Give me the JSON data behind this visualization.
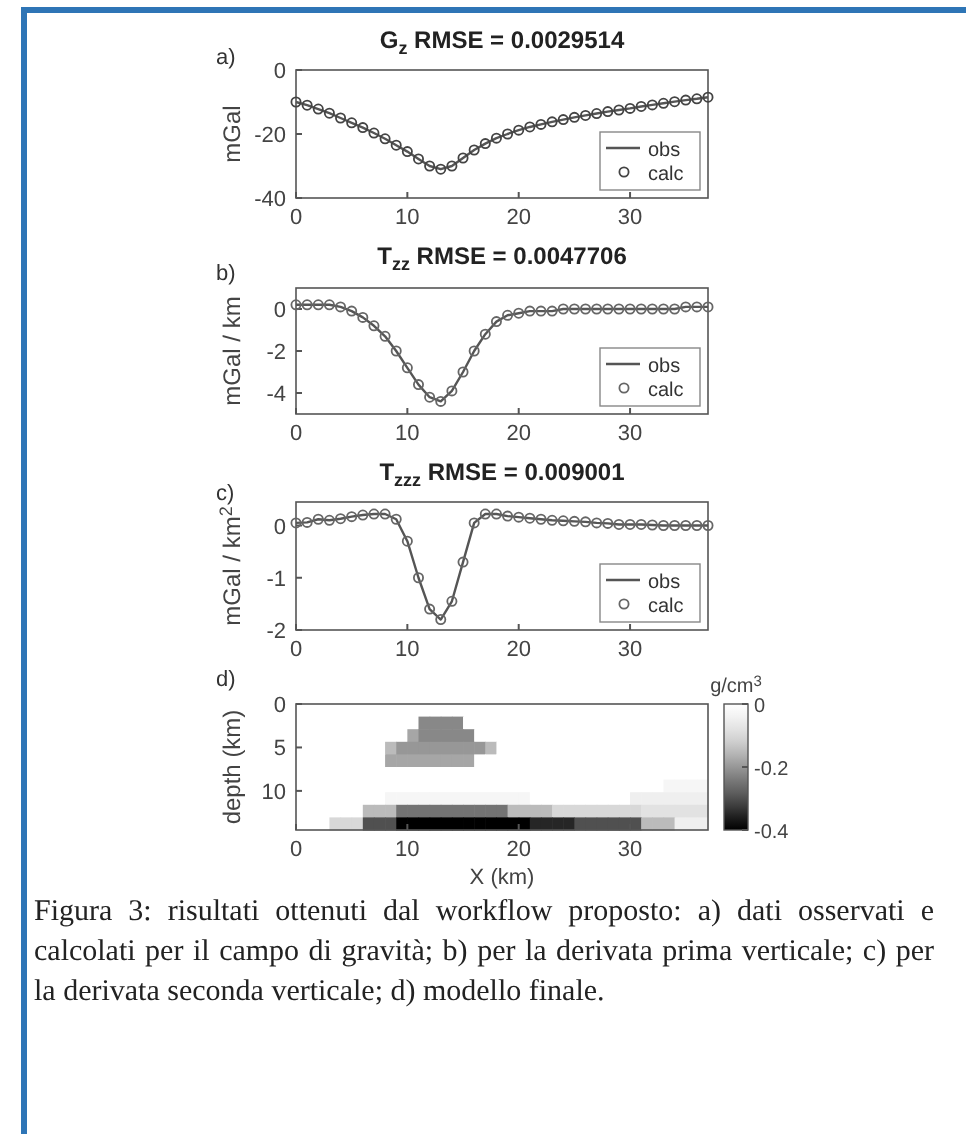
{
  "chart_data": [
    {
      "type": "line",
      "title": "G$_{z}$ RMSE = 0.0029514",
      "ylabel": "mGal",
      "annotations": [
        "a)"
      ],
      "x": [
        0,
        1,
        2,
        3,
        4,
        5,
        6,
        7,
        8,
        9,
        10,
        11,
        12,
        13,
        14,
        15,
        16,
        17,
        18,
        19,
        20,
        21,
        22,
        23,
        24,
        25,
        26,
        27,
        28,
        29,
        30,
        31,
        32,
        33,
        34,
        35,
        36,
        37
      ],
      "xlim": [
        0,
        37
      ],
      "xticks": [
        0,
        10,
        20,
        30
      ],
      "ylim": [
        -40,
        0
      ],
      "yticks": [
        -40,
        -20,
        0
      ],
      "grid": false,
      "legend": "bottom right",
      "series": [
        {
          "name": "obs",
          "type": "line",
          "color": "#555555",
          "line_style": "solid",
          "values": [
            -10,
            -11,
            -12.2,
            -13.5,
            -15,
            -16.5,
            -18,
            -19.7,
            -21.5,
            -23.5,
            -25.5,
            -27.8,
            -30,
            -31,
            -30,
            -27.5,
            -25,
            -23,
            -21.3,
            -20,
            -18.8,
            -17.8,
            -17,
            -16.2,
            -15.5,
            -14.8,
            -14.2,
            -13.6,
            -13,
            -12.5,
            -12,
            -11.4,
            -10.9,
            -10.4,
            -9.9,
            -9.4,
            -9,
            -8.5
          ]
        },
        {
          "name": "calc",
          "type": "scatter",
          "color": "#444444",
          "marker": "circle",
          "values": [
            -10,
            -11,
            -12.2,
            -13.5,
            -15,
            -16.5,
            -18,
            -19.7,
            -21.5,
            -23.5,
            -25.5,
            -27.8,
            -30,
            -31,
            -30,
            -27.5,
            -25,
            -23,
            -21.3,
            -20,
            -18.8,
            -17.8,
            -17,
            -16.2,
            -15.5,
            -14.8,
            -14.2,
            -13.6,
            -13,
            -12.5,
            -12,
            -11.4,
            -10.9,
            -10.4,
            -9.9,
            -9.4,
            -9,
            -8.5
          ]
        }
      ]
    },
    {
      "type": "line",
      "title": "T$_{zz}$ RMSE = 0.0047706",
      "ylabel": "mGal / km",
      "annotations": [
        "b)"
      ],
      "x": [
        0,
        1,
        2,
        3,
        4,
        5,
        6,
        7,
        8,
        9,
        10,
        11,
        12,
        13,
        14,
        15,
        16,
        17,
        18,
        19,
        20,
        21,
        22,
        23,
        24,
        25,
        26,
        27,
        28,
        29,
        30,
        31,
        32,
        33,
        34,
        35,
        36,
        37
      ],
      "xlim": [
        0,
        37
      ],
      "xticks": [
        0,
        10,
        20,
        30
      ],
      "ylim": [
        -5,
        1
      ],
      "yticks": [
        -4,
        -2,
        0
      ],
      "grid": false,
      "legend": "bottom right",
      "series": [
        {
          "name": "obs",
          "type": "line",
          "color": "#555555",
          "line_style": "solid",
          "values": [
            0.2,
            0.2,
            0.2,
            0.2,
            0.1,
            -0.1,
            -0.4,
            -0.8,
            -1.3,
            -2,
            -2.8,
            -3.6,
            -4.2,
            -4.4,
            -3.9,
            -3,
            -2,
            -1.2,
            -0.6,
            -0.3,
            -0.2,
            -0.1,
            -0.1,
            -0.1,
            0,
            0,
            0,
            0,
            0,
            0,
            0,
            0,
            0,
            0,
            0,
            0.1,
            0.1,
            0.1
          ]
        },
        {
          "name": "calc",
          "type": "scatter",
          "color": "#666666",
          "marker": "circle",
          "values": [
            0.2,
            0.2,
            0.2,
            0.2,
            0.1,
            -0.1,
            -0.4,
            -0.8,
            -1.3,
            -2,
            -2.8,
            -3.6,
            -4.2,
            -4.4,
            -3.9,
            -3,
            -2,
            -1.2,
            -0.6,
            -0.3,
            -0.2,
            -0.1,
            -0.1,
            -0.1,
            0,
            0,
            0,
            0,
            0,
            0,
            0,
            0,
            0,
            0,
            0,
            0.1,
            0.1,
            0.1
          ]
        }
      ]
    },
    {
      "type": "line",
      "title": "T$_{zzz}$ RMSE = 0.009001",
      "ylabel": "mGal / km$^{2}$",
      "annotations": [
        "c)"
      ],
      "x": [
        0,
        1,
        2,
        3,
        4,
        5,
        6,
        7,
        8,
        9,
        10,
        11,
        12,
        13,
        14,
        15,
        16,
        17,
        18,
        19,
        20,
        21,
        22,
        23,
        24,
        25,
        26,
        27,
        28,
        29,
        30,
        31,
        32,
        33,
        34,
        35,
        36,
        37
      ],
      "xlim": [
        0,
        37
      ],
      "xticks": [
        0,
        10,
        20,
        30
      ],
      "ylim": [
        -2,
        0.45
      ],
      "yticks": [
        -2,
        -1,
        0
      ],
      "grid": false,
      "legend": "bottom right",
      "series": [
        {
          "name": "obs",
          "type": "line",
          "color": "#555555",
          "line_style": "solid",
          "values": [
            0.05,
            0.06,
            0.12,
            0.1,
            0.13,
            0.17,
            0.2,
            0.22,
            0.22,
            0.12,
            -0.3,
            -1,
            -1.6,
            -1.8,
            -1.45,
            -0.7,
            0.05,
            0.22,
            0.22,
            0.18,
            0.16,
            0.14,
            0.12,
            0.1,
            0.09,
            0.08,
            0.07,
            0.05,
            0.04,
            0.02,
            0.02,
            0.02,
            0.01,
            0,
            0,
            0,
            0,
            0
          ]
        },
        {
          "name": "calc",
          "type": "scatter",
          "color": "#666666",
          "marker": "circle",
          "values": [
            0.05,
            0.06,
            0.12,
            0.1,
            0.13,
            0.17,
            0.2,
            0.22,
            0.22,
            0.12,
            -0.3,
            -1,
            -1.6,
            -1.8,
            -1.45,
            -0.7,
            0.05,
            0.22,
            0.22,
            0.18,
            0.16,
            0.14,
            0.12,
            0.1,
            0.09,
            0.08,
            0.07,
            0.05,
            0.04,
            0.02,
            0.02,
            0.02,
            0.01,
            0,
            0,
            0,
            0,
            0
          ]
        }
      ]
    },
    {
      "type": "heatmap",
      "xlabel": "X (km)",
      "ylabel": "depth (km)",
      "clabel": "g/cm$^{3}$",
      "annotations": [
        "d)",
        "Figura 3: risultati ottenuti dal workflow proposto: a) dati osservati e calcolati per il campo di gravità; b) per la derivata prima verticale; c) per la derivata seconda verticale; d) modello finale."
      ],
      "xlim": [
        0,
        37
      ],
      "xticks": [
        0,
        10,
        20,
        30
      ],
      "ylim": [
        14.5,
        0
      ],
      "yticks": [
        0,
        5,
        10
      ],
      "clim": [
        -0.4,
        0
      ],
      "cticks": [
        -0.4,
        -0.2,
        0
      ],
      "cells": [
        [
          0,
          0,
          0,
          0,
          0,
          0,
          0,
          0,
          0,
          0,
          0,
          0,
          0,
          0,
          0,
          0,
          0,
          0,
          0,
          0,
          0,
          0,
          0,
          0,
          0,
          0,
          0,
          0,
          0,
          0,
          0,
          0,
          0,
          0,
          0,
          0,
          0
        ],
        [
          0,
          0,
          0,
          0,
          0,
          0,
          0,
          0,
          0,
          0,
          0,
          -0.22,
          -0.22,
          -0.22,
          -0.22,
          0,
          0,
          0,
          0,
          0,
          0,
          0,
          0,
          0,
          0,
          0,
          0,
          0,
          0,
          0,
          0,
          0,
          0,
          0,
          0,
          0,
          0
        ],
        [
          0,
          0,
          0,
          0,
          0,
          0,
          0,
          0,
          0,
          0,
          -0.18,
          -0.22,
          -0.22,
          -0.22,
          -0.22,
          -0.22,
          0,
          0,
          0,
          0,
          0,
          0,
          0,
          0,
          0,
          0,
          0,
          0,
          0,
          0,
          0,
          0,
          0,
          0,
          0,
          0,
          0
        ],
        [
          0,
          0,
          0,
          0,
          0,
          0,
          0,
          0,
          -0.15,
          -0.2,
          -0.2,
          -0.2,
          -0.2,
          -0.2,
          -0.2,
          -0.2,
          -0.2,
          -0.15,
          0,
          0,
          0,
          0,
          0,
          0,
          0,
          0,
          0,
          0,
          0,
          0,
          0,
          0,
          0,
          0,
          0,
          0,
          0
        ],
        [
          0,
          0,
          0,
          0,
          0,
          0,
          0,
          0,
          -0.18,
          -0.18,
          -0.18,
          -0.18,
          -0.18,
          -0.18,
          -0.18,
          -0.18,
          0,
          0,
          0,
          0,
          0,
          0,
          0,
          0,
          0,
          0,
          0,
          0,
          0,
          0,
          0,
          0,
          0,
          0,
          0,
          0,
          0
        ],
        [
          0,
          0,
          0,
          0,
          0,
          0,
          0,
          0,
          0,
          0,
          0,
          0,
          0,
          0,
          0,
          0,
          0,
          0,
          0,
          0,
          0,
          0,
          0,
          0,
          0,
          0,
          0,
          0,
          0,
          0,
          0,
          0,
          0,
          0,
          0,
          0,
          0
        ],
        [
          0,
          0,
          0,
          0,
          0,
          0,
          0,
          0,
          0,
          0,
          0,
          0,
          0,
          0,
          0,
          0,
          0,
          0,
          0,
          0,
          0,
          0,
          0,
          0,
          0,
          0,
          0,
          0,
          0,
          0,
          0,
          0,
          0,
          -0.03,
          -0.03,
          -0.03,
          -0.03
        ],
        [
          0,
          0,
          0,
          0,
          0,
          0,
          0,
          0,
          -0.03,
          -0.03,
          -0.03,
          -0.03,
          -0.03,
          -0.03,
          -0.03,
          -0.03,
          -0.03,
          -0.03,
          -0.03,
          -0.03,
          -0.03,
          0,
          0,
          0,
          0,
          0,
          0,
          0,
          0,
          0,
          -0.05,
          -0.05,
          -0.05,
          -0.05,
          -0.05,
          -0.05,
          -0.05
        ],
        [
          0,
          0,
          0,
          0,
          0,
          0,
          -0.15,
          -0.15,
          -0.15,
          -0.25,
          -0.25,
          -0.25,
          -0.25,
          -0.25,
          -0.25,
          -0.25,
          -0.25,
          -0.25,
          -0.25,
          -0.15,
          -0.15,
          -0.15,
          -0.15,
          -0.1,
          -0.1,
          -0.1,
          -0.1,
          -0.1,
          -0.1,
          -0.1,
          -0.1,
          -0.08,
          -0.08,
          -0.08,
          -0.08,
          -0.08,
          -0.08
        ],
        [
          0,
          0,
          0,
          -0.1,
          -0.1,
          -0.1,
          -0.3,
          -0.3,
          -0.3,
          -0.4,
          -0.4,
          -0.4,
          -0.4,
          -0.4,
          -0.4,
          -0.4,
          -0.4,
          -0.4,
          -0.4,
          -0.4,
          -0.4,
          -0.35,
          -0.35,
          -0.35,
          -0.35,
          -0.3,
          -0.3,
          -0.3,
          -0.3,
          -0.3,
          -0.3,
          -0.15,
          -0.15,
          -0.15,
          -0.05,
          -0.05,
          -0.05
        ]
      ]
    }
  ]
}
